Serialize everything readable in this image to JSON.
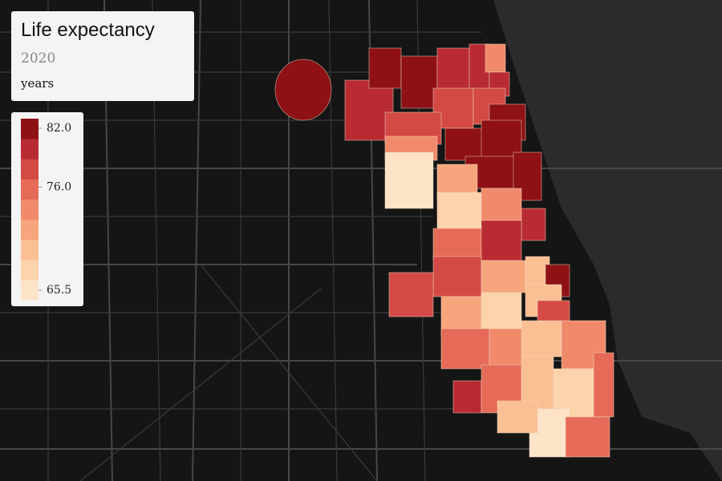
{
  "map": {
    "title": "Life expectancy",
    "subtitle": "2020",
    "unit": "years",
    "legend": {
      "range": [
        65.5,
        82
      ],
      "ticks": [
        {
          "value": 82,
          "label": "82.0"
        },
        {
          "value": 76,
          "label": "76.0"
        },
        {
          "value": 65.5,
          "label": "65.5"
        }
      ],
      "colors": [
        "#fde3c8",
        "#fcd3ab",
        "#fbbf94",
        "#f7a57c",
        "#f08a6a",
        "#e56b58",
        "#d34a45",
        "#b92b33",
        "#8e1115"
      ]
    },
    "regions": [
      81.5,
      80,
      80.5,
      81,
      80,
      79,
      74,
      80,
      78,
      77,
      81.5,
      77,
      74,
      80.5,
      82,
      81,
      82,
      67,
      71,
      68,
      74,
      79,
      75,
      79,
      78,
      77,
      72,
      70,
      82,
      72,
      69,
      70,
      77,
      75,
      73,
      70,
      74,
      79,
      76,
      70,
      68,
      76,
      67,
      75,
      70
    ]
  }
}
